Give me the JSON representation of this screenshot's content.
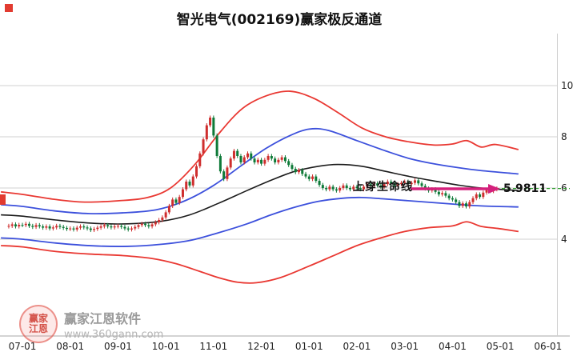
{
  "title": "智光电气(002169)赢家极反通道",
  "annotation": {
    "label": "上穿生命线",
    "price_label": "5.9811"
  },
  "watermark": {
    "brand": "赢家江恩软件",
    "url": "www.360gann.com",
    "logo_line1": "赢家",
    "logo_line2": "江恩"
  },
  "chart_data": {
    "type": "candlestick",
    "title": "智光电气(002169)赢家极反通道",
    "xlabel": "",
    "ylabel": "",
    "ylim": [
      2,
      10.5
    ],
    "y_ticks": [
      10,
      8,
      6,
      4
    ],
    "x_labels": [
      "07-01",
      "08-01",
      "09-01",
      "10-01",
      "11-01",
      "12-01",
      "01-01",
      "02-01",
      "03-01",
      "04-01",
      "05-01",
      "06-01"
    ],
    "grid": true,
    "current_price": 5.9811,
    "candles_per_month": 14,
    "pre_candles": 4,
    "closes": [
      4.52,
      4.58,
      4.5,
      4.56,
      4.55,
      4.6,
      4.52,
      4.48,
      4.55,
      4.5,
      4.45,
      4.5,
      4.42,
      4.46,
      4.52,
      4.48,
      4.44,
      4.4,
      4.42,
      4.38,
      4.45,
      4.5,
      4.46,
      4.42,
      4.36,
      4.4,
      4.45,
      4.5,
      4.55,
      4.5,
      4.46,
      4.5,
      4.52,
      4.48,
      4.42,
      4.38,
      4.42,
      4.48,
      4.55,
      4.6,
      4.55,
      4.5,
      4.58,
      4.66,
      4.75,
      4.85,
      5.05,
      5.3,
      5.55,
      5.42,
      5.65,
      5.95,
      6.25,
      6.1,
      6.45,
      6.85,
      7.35,
      7.9,
      8.45,
      8.75,
      8.05,
      7.25,
      6.65,
      6.35,
      6.8,
      7.15,
      7.45,
      7.25,
      7.0,
      7.2,
      7.35,
      7.15,
      7.0,
      7.1,
      6.95,
      7.1,
      7.25,
      7.15,
      7.0,
      7.1,
      7.2,
      7.05,
      6.9,
      6.75,
      6.62,
      6.7,
      6.55,
      6.45,
      6.35,
      6.45,
      6.28,
      6.12,
      6.0,
      5.95,
      6.05,
      5.95,
      5.9,
      6.0,
      6.1,
      6.0,
      5.95,
      6.05,
      6.0,
      5.95,
      6.05,
      6.15,
      6.08,
      6.18,
      6.1,
      6.05,
      6.15,
      6.25,
      6.18,
      6.1,
      6.15,
      6.2,
      6.25,
      6.15,
      6.2,
      6.3,
      6.18,
      6.08,
      5.98,
      5.9,
      5.95,
      5.85,
      5.75,
      5.8,
      5.7,
      5.6,
      5.55,
      5.45,
      5.3,
      5.4,
      5.28,
      5.45,
      5.6,
      5.75,
      5.65,
      5.82,
      5.92,
      5.88,
      5.95,
      5.98
    ],
    "series": [
      {
        "name": "upper-rail-red",
        "color": "#e93832",
        "width": 1.8,
        "points": [
          [
            -0.45,
            5.85
          ],
          [
            0,
            5.75
          ],
          [
            0.7,
            5.55
          ],
          [
            1.3,
            5.45
          ],
          [
            2,
            5.5
          ],
          [
            2.6,
            5.62
          ],
          [
            3.1,
            6.0
          ],
          [
            3.6,
            6.9
          ],
          [
            4.1,
            8.1
          ],
          [
            4.6,
            9.1
          ],
          [
            5.1,
            9.6
          ],
          [
            5.6,
            9.78
          ],
          [
            6.1,
            9.5
          ],
          [
            6.6,
            8.95
          ],
          [
            7.1,
            8.35
          ],
          [
            7.6,
            8.0
          ],
          [
            8.1,
            7.8
          ],
          [
            8.6,
            7.68
          ],
          [
            9.0,
            7.72
          ],
          [
            9.3,
            7.85
          ],
          [
            9.6,
            7.6
          ],
          [
            9.9,
            7.7
          ],
          [
            10.38,
            7.5
          ]
        ]
      },
      {
        "name": "upper-channel-blue",
        "color": "#3c50dc",
        "width": 1.8,
        "points": [
          [
            -0.45,
            5.35
          ],
          [
            0,
            5.28
          ],
          [
            0.7,
            5.1
          ],
          [
            1.4,
            5.0
          ],
          [
            2.1,
            5.03
          ],
          [
            2.8,
            5.15
          ],
          [
            3.4,
            5.5
          ],
          [
            4.0,
            6.1
          ],
          [
            4.6,
            6.9
          ],
          [
            5.1,
            7.55
          ],
          [
            5.6,
            8.05
          ],
          [
            6.0,
            8.3
          ],
          [
            6.4,
            8.25
          ],
          [
            7.0,
            7.85
          ],
          [
            7.6,
            7.45
          ],
          [
            8.1,
            7.15
          ],
          [
            8.6,
            6.95
          ],
          [
            9.1,
            6.8
          ],
          [
            9.6,
            6.68
          ],
          [
            10.38,
            6.55
          ]
        ]
      },
      {
        "name": "life-line",
        "color": "#1b1b1b",
        "width": 1.6,
        "points": [
          [
            -0.45,
            4.95
          ],
          [
            0,
            4.9
          ],
          [
            0.7,
            4.75
          ],
          [
            1.5,
            4.62
          ],
          [
            2.2,
            4.6
          ],
          [
            2.9,
            4.7
          ],
          [
            3.5,
            4.95
          ],
          [
            4.1,
            5.4
          ],
          [
            4.7,
            5.9
          ],
          [
            5.2,
            6.3
          ],
          [
            5.7,
            6.65
          ],
          [
            6.2,
            6.85
          ],
          [
            6.6,
            6.92
          ],
          [
            7.1,
            6.85
          ],
          [
            7.6,
            6.65
          ],
          [
            8.1,
            6.45
          ],
          [
            8.6,
            6.28
          ],
          [
            9.1,
            6.12
          ],
          [
            9.6,
            6.0
          ],
          [
            10.38,
            5.9
          ]
        ]
      },
      {
        "name": "lower-channel-blue",
        "color": "#3c50dc",
        "width": 1.8,
        "points": [
          [
            -0.45,
            4.05
          ],
          [
            0,
            4.0
          ],
          [
            0.7,
            3.85
          ],
          [
            1.5,
            3.74
          ],
          [
            2.2,
            3.72
          ],
          [
            2.9,
            3.8
          ],
          [
            3.5,
            3.95
          ],
          [
            4.1,
            4.25
          ],
          [
            4.7,
            4.6
          ],
          [
            5.2,
            4.95
          ],
          [
            5.7,
            5.25
          ],
          [
            6.2,
            5.48
          ],
          [
            6.7,
            5.6
          ],
          [
            7.1,
            5.63
          ],
          [
            7.6,
            5.57
          ],
          [
            8.1,
            5.5
          ],
          [
            8.6,
            5.43
          ],
          [
            9.1,
            5.36
          ],
          [
            9.6,
            5.3
          ],
          [
            10.38,
            5.26
          ]
        ]
      },
      {
        "name": "lower-rail-red",
        "color": "#e93832",
        "width": 1.8,
        "points": [
          [
            -0.45,
            3.75
          ],
          [
            0,
            3.7
          ],
          [
            0.7,
            3.52
          ],
          [
            1.4,
            3.42
          ],
          [
            2.1,
            3.36
          ],
          [
            2.7,
            3.25
          ],
          [
            3.2,
            3.05
          ],
          [
            3.7,
            2.75
          ],
          [
            4.1,
            2.5
          ],
          [
            4.5,
            2.32
          ],
          [
            4.9,
            2.3
          ],
          [
            5.4,
            2.5
          ],
          [
            6.0,
            2.95
          ],
          [
            6.5,
            3.35
          ],
          [
            7.0,
            3.75
          ],
          [
            7.5,
            4.05
          ],
          [
            8.0,
            4.3
          ],
          [
            8.5,
            4.45
          ],
          [
            9.0,
            4.52
          ],
          [
            9.3,
            4.68
          ],
          [
            9.6,
            4.5
          ],
          [
            9.95,
            4.42
          ],
          [
            10.38,
            4.3
          ]
        ]
      }
    ],
    "colors": {
      "up": "#cf2e2e",
      "down": "#0e7a38",
      "grid": "#d0d0d0",
      "axis": "#a8a8a8",
      "tick_text": "#222222",
      "dashed_line": "#2e9e2e",
      "arrow": "#d4217c"
    }
  }
}
